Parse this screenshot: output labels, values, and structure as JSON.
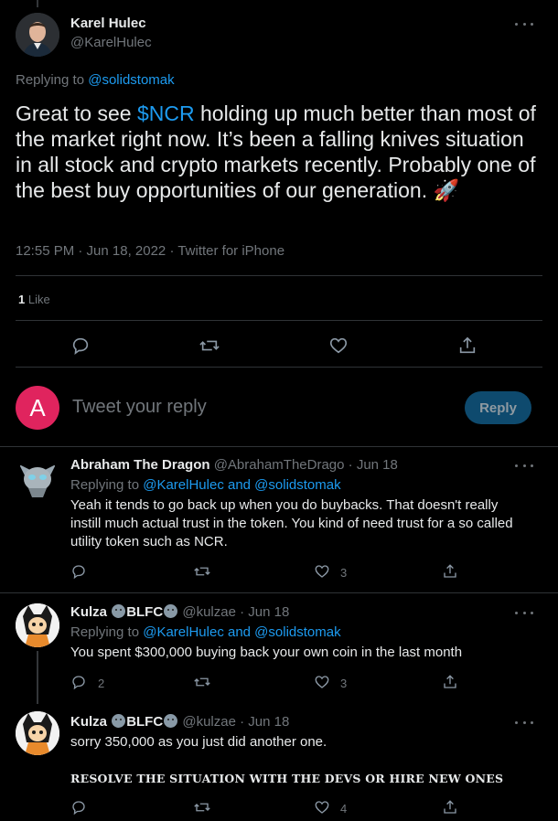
{
  "main_tweet": {
    "author_name": "Karel Hulec",
    "author_handle": "@KarelHulec",
    "replying_prefix": "Replying to ",
    "replying_to": "@solidstomak",
    "text_before_cashtag": "Great to see ",
    "cashtag": "$NCR",
    "text_after_cashtag": " holding up much better than most of the market right now. It’s been a falling knives situation in all stock and crypto markets recently. Probably one of the best buy opportunities of our generation.",
    "emoji": "🚀",
    "timestamp": "12:55 PM · Jun 18, 2022 · Twitter for iPhone",
    "like_count": "1",
    "like_label": " Like"
  },
  "composer": {
    "avatar_letter": "A",
    "placeholder": "Tweet your reply",
    "button_label": "Reply"
  },
  "replies": [
    {
      "name": "Abraham The Dragon",
      "handle_date": "@AbrahamTheDrago · Jun 18",
      "replying_prefix": "Replying to ",
      "replying_to": "@KarelHulec and @solidstomak",
      "text": "Yeah it tends to go back up when you do buybacks. That doesn't really instill much actual trust in the token. You kind of need trust for a so called utility token such as NCR.",
      "reply_count": "",
      "like_count": "3"
    },
    {
      "name_part1": "Kulza ",
      "name_part2": "BLFC",
      "handle_date": "@kulzae · Jun 18",
      "replying_prefix": "Replying to ",
      "replying_to": "@KarelHulec and @solidstomak",
      "text": "You spent $300,000 buying back your  own coin in the last month",
      "reply_count": "2",
      "like_count": "3"
    },
    {
      "name_part1": "Kulza ",
      "name_part2": "BLFC",
      "handle_date": "@kulzae · Jun 18",
      "text": "sorry 350,000 as you just did another one.",
      "bold_text": "RESOLVE THE SITUATION WITH THE DEVS OR HIRE NEW ONES",
      "reply_count": "",
      "like_count": "4"
    }
  ],
  "colors": {
    "background": "#000000",
    "text": "#e7e9ea",
    "muted": "#71767b",
    "link": "#1d9bf0",
    "composer_avatar": "#e0245e",
    "reply_button": "#0e4a6e"
  },
  "icons": [
    "more-icon",
    "reply-icon",
    "retweet-icon",
    "like-icon",
    "share-icon"
  ]
}
